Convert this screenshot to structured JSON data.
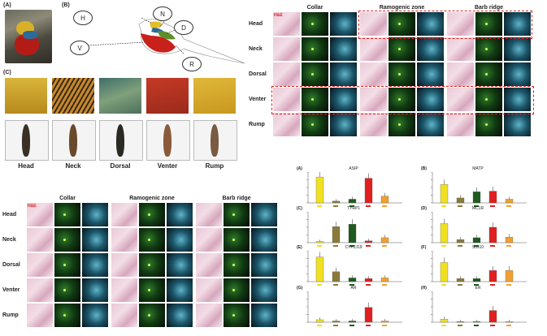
{
  "panelA": {
    "letter": "(A)"
  },
  "panelB": {
    "letter": "(B)",
    "region_labels": [
      "H",
      "N",
      "D",
      "V",
      "R"
    ]
  },
  "panelC": {
    "letter": "(C)",
    "feather_names": [
      "Head",
      "Neck",
      "Dorsal",
      "Venter",
      "Rump"
    ]
  },
  "histology_top": {
    "columns": [
      "Collar",
      "Ramogenic zone",
      "Barb ridge"
    ],
    "rows": [
      "Head",
      "Neck",
      "Dorsal",
      "Venter",
      "Rump"
    ],
    "corner_tag": "H&E"
  },
  "histology_bottom": {
    "columns": [
      "Collar",
      "Ramogenic zone",
      "Barb ridge"
    ],
    "rows": [
      "Head",
      "Neck",
      "Dorsal",
      "Venter",
      "Rump"
    ],
    "corner_tag": "H&E"
  },
  "colors": {
    "yellow": "#f0e020",
    "olive": "#8a7a3a",
    "darkgreen": "#1f5a1f",
    "red": "#e02020",
    "orange": "#f0a030",
    "dash_red": "#e02020"
  },
  "chart_data": [
    {
      "type": "bar",
      "panel": "(A)",
      "title": "ASIP",
      "values": [
        4.2,
        0.3,
        0.6,
        4.0,
        1.1
      ]
    },
    {
      "type": "bar",
      "panel": "(B)",
      "title": "MATP",
      "values": [
        3.0,
        0.8,
        1.8,
        1.9,
        0.6
      ]
    },
    {
      "type": "bar",
      "panel": "(C)",
      "title": "TYRP1",
      "values": [
        0.2,
        2.6,
        3.0,
        0.3,
        0.8
      ]
    },
    {
      "type": "bar",
      "panel": "(D)",
      "title": "MC1R",
      "values": [
        3.1,
        0.5,
        0.8,
        2.5,
        0.9
      ]
    },
    {
      "type": "bar",
      "panel": "(E)",
      "title": "CYP2J19",
      "values": [
        4.0,
        1.6,
        0.6,
        0.5,
        0.6
      ]
    },
    {
      "type": "bar",
      "panel": "(F)",
      "title": "Sox10",
      "values": [
        3.1,
        0.5,
        0.5,
        1.8,
        1.8
      ]
    },
    {
      "type": "bar",
      "panel": "(G)",
      "title": "AR",
      "values": [
        0.4,
        0.2,
        0.2,
        2.4,
        0.2
      ]
    },
    {
      "type": "bar",
      "panel": "(H)",
      "title": "ER",
      "values": [
        0.5,
        0.1,
        0.1,
        1.9,
        0.1
      ]
    }
  ]
}
